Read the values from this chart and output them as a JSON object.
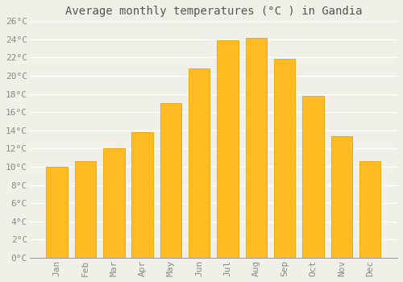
{
  "title": "Average monthly temperatures (°C ) in Gandia",
  "months": [
    "Jan",
    "Feb",
    "Mar",
    "Apr",
    "May",
    "Jun",
    "Jul",
    "Aug",
    "Sep",
    "Oct",
    "Nov",
    "Dec"
  ],
  "temperatures": [
    10.0,
    10.6,
    12.0,
    13.8,
    17.0,
    20.8,
    23.9,
    24.2,
    21.9,
    17.8,
    13.4,
    10.6
  ],
  "bar_color": "#FFBB22",
  "bar_edge_color": "#E8A500",
  "bar_edge_linewidth": 0.6,
  "ylim": [
    0,
    26
  ],
  "yticks": [
    0,
    2,
    4,
    6,
    8,
    10,
    12,
    14,
    16,
    18,
    20,
    22,
    24,
    26
  ],
  "background_color": "#F0F0E8",
  "plot_bg_color": "#F0F0E8",
  "grid_color": "#FFFFFF",
  "title_fontsize": 10,
  "tick_fontsize": 8,
  "title_color": "#555555",
  "tick_color": "#888888",
  "bar_width": 0.75
}
